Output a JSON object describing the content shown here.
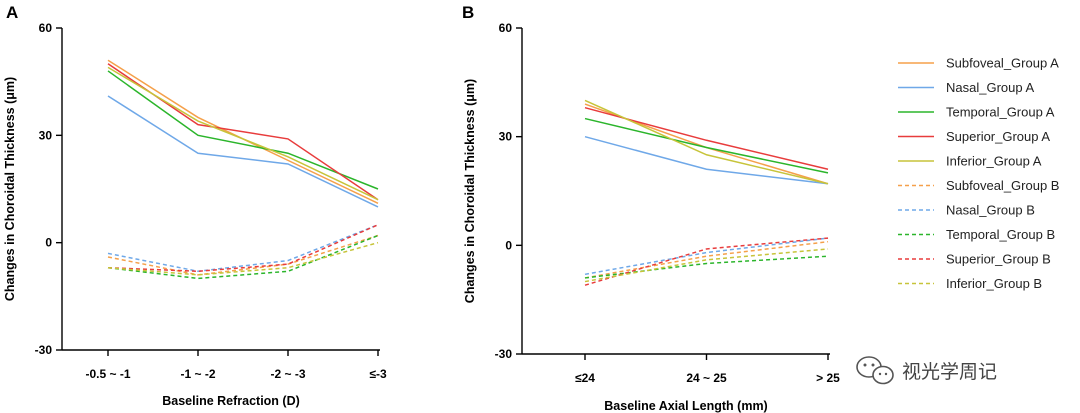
{
  "chart_data": [
    {
      "type": "line",
      "panel_label": "A",
      "xlabel": "Baseline Refraction (D)",
      "ylabel": "Changes in Choroidal Thickness (μm)",
      "categories": [
        "-0.5 ~ -1",
        "-1 ~ -2",
        "-2 ~ -3",
        "≤-3"
      ],
      "ylim": [
        -30,
        60
      ],
      "yticks": [
        "60",
        "30",
        "0",
        "-30"
      ],
      "grid": false,
      "series": [
        {
          "name": "Subfoveal_Group A",
          "color": "#f5a04a",
          "dash": false,
          "values": [
            51,
            35,
            23,
            11
          ]
        },
        {
          "name": "Nasal_Group A",
          "color": "#6fa8e8",
          "dash": false,
          "values": [
            41,
            25,
            22,
            10
          ]
        },
        {
          "name": "Temporal_Group A",
          "color": "#2bb52b",
          "dash": false,
          "values": [
            48,
            30,
            25,
            15
          ]
        },
        {
          "name": "Superior_Group A",
          "color": "#e83c3c",
          "dash": false,
          "values": [
            50,
            33,
            29,
            12
          ]
        },
        {
          "name": "Inferior_Group A",
          "color": "#c7c43a",
          "dash": false,
          "values": [
            49,
            34,
            24,
            12
          ]
        },
        {
          "name": "Subfoveal_Group B",
          "color": "#f5a04a",
          "dash": true,
          "values": [
            -4,
            -9,
            -6,
            2
          ]
        },
        {
          "name": "Nasal_Group B",
          "color": "#6fa8e8",
          "dash": true,
          "values": [
            -3,
            -8,
            -5,
            5
          ]
        },
        {
          "name": "Temporal_Group B",
          "color": "#2bb52b",
          "dash": true,
          "values": [
            -7,
            -10,
            -8,
            2
          ]
        },
        {
          "name": "Superior_Group B",
          "color": "#e83c3c",
          "dash": true,
          "values": [
            -7,
            -8,
            -6,
            5
          ]
        },
        {
          "name": "Inferior_Group B",
          "color": "#c7c43a",
          "dash": true,
          "values": [
            -7,
            -9,
            -7,
            0
          ]
        }
      ]
    },
    {
      "type": "line",
      "panel_label": "B",
      "xlabel": "Baseline Axial Length (mm)",
      "ylabel": "Changes in Choroidal Thickness (μm)",
      "categories": [
        "≤24",
        "24 ~ 25",
        "> 25"
      ],
      "ylim": [
        -30,
        60
      ],
      "yticks": [
        "60",
        "30",
        "0",
        "-30"
      ],
      "grid": false,
      "series": [
        {
          "name": "Subfoveal_Group A",
          "color": "#f5a04a",
          "dash": false,
          "values": [
            39,
            27,
            17
          ]
        },
        {
          "name": "Nasal_Group A",
          "color": "#6fa8e8",
          "dash": false,
          "values": [
            30,
            21,
            17
          ]
        },
        {
          "name": "Temporal_Group A",
          "color": "#2bb52b",
          "dash": false,
          "values": [
            35,
            27,
            20
          ]
        },
        {
          "name": "Superior_Group A",
          "color": "#e83c3c",
          "dash": false,
          "values": [
            38,
            29,
            21
          ]
        },
        {
          "name": "Inferior_Group A",
          "color": "#c7c43a",
          "dash": false,
          "values": [
            40,
            25,
            17
          ]
        },
        {
          "name": "Subfoveal_Group B",
          "color": "#f5a04a",
          "dash": true,
          "values": [
            -9,
            -3,
            1
          ]
        },
        {
          "name": "Nasal_Group B",
          "color": "#6fa8e8",
          "dash": true,
          "values": [
            -8,
            -2,
            2
          ]
        },
        {
          "name": "Temporal_Group B",
          "color": "#2bb52b",
          "dash": true,
          "values": [
            -9,
            -5,
            -3
          ]
        },
        {
          "name": "Superior_Group B",
          "color": "#e83c3c",
          "dash": true,
          "values": [
            -11,
            -1,
            2
          ]
        },
        {
          "name": "Inferior_Group B",
          "color": "#c7c43a",
          "dash": true,
          "values": [
            -10,
            -4,
            -1
          ]
        }
      ]
    }
  ],
  "legend": {
    "placement": "right",
    "entries": [
      {
        "label": "Subfoveal_Group A",
        "color": "#f5a04a",
        "dash": false
      },
      {
        "label": "Nasal_Group A",
        "color": "#6fa8e8",
        "dash": false
      },
      {
        "label": "Temporal_Group A",
        "color": "#2bb52b",
        "dash": false
      },
      {
        "label": "Superior_Group A",
        "color": "#e83c3c",
        "dash": false
      },
      {
        "label": "Inferior_Group A",
        "color": "#c7c43a",
        "dash": false
      },
      {
        "label": "Subfoveal_Group B",
        "color": "#f5a04a",
        "dash": true
      },
      {
        "label": "Nasal_Group B",
        "color": "#6fa8e8",
        "dash": true
      },
      {
        "label": "Temporal_Group B",
        "color": "#2bb52b",
        "dash": true
      },
      {
        "label": "Superior_Group B",
        "color": "#e83c3c",
        "dash": true
      },
      {
        "label": "Inferior_Group B",
        "color": "#c7c43a",
        "dash": true
      }
    ]
  },
  "watermark": {
    "text": "视光学周记",
    "icon": "wechat-icon"
  }
}
